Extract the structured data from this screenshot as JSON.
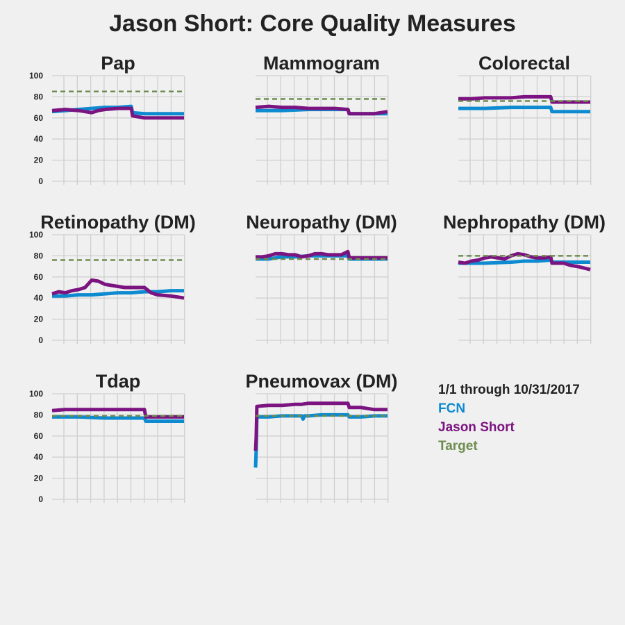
{
  "title": "Jason Short: Core Quality Measures",
  "legend": {
    "title": "1/1 through 10/31/2017",
    "items": [
      {
        "label": "FCN",
        "color": "#0d8ad0"
      },
      {
        "label": "Jason Short",
        "color": "#7b1480"
      },
      {
        "label": "Target",
        "color": "#6e8c4e"
      }
    ]
  },
  "chart_data": [
    {
      "type": "line",
      "title": "Pap",
      "yticks": [
        0,
        20,
        40,
        60,
        80,
        100
      ],
      "ylim": [
        0,
        100
      ],
      "xlim": [
        0,
        10
      ],
      "target": 85,
      "series": [
        {
          "name": "FCN",
          "x": [
            0,
            1,
            2,
            3,
            4,
            5,
            6.0,
            6.1,
            7,
            8,
            9,
            10
          ],
          "y": [
            66,
            67,
            68,
            69,
            70,
            70,
            71,
            65,
            64,
            64,
            64,
            64
          ]
        },
        {
          "name": "Jason Short",
          "x": [
            0,
            1,
            2,
            2.5,
            3,
            3.5,
            4,
            5,
            6,
            6.1,
            7,
            8,
            9,
            10
          ],
          "y": [
            67,
            68,
            67,
            66,
            65,
            67,
            68,
            69,
            69,
            62,
            60,
            60,
            60,
            60
          ]
        }
      ]
    },
    {
      "type": "line",
      "title": "Mammogram",
      "yticks": [
        0,
        20,
        40,
        60,
        80,
        100
      ],
      "ylim": [
        0,
        100
      ],
      "xlim": [
        0,
        10
      ],
      "target": 78,
      "series": [
        {
          "name": "FCN",
          "x": [
            0,
            2,
            4,
            6,
            7,
            7.1,
            8,
            9,
            10
          ],
          "y": [
            67,
            67,
            68,
            68,
            68,
            64,
            64,
            64,
            64
          ]
        },
        {
          "name": "Jason Short",
          "x": [
            0,
            1,
            2,
            3,
            4,
            5,
            6,
            7,
            7.1,
            8,
            9,
            10
          ],
          "y": [
            70,
            71,
            70,
            70,
            69,
            69,
            69,
            68,
            64,
            64,
            64,
            66
          ]
        }
      ]
    },
    {
      "type": "line",
      "title": "Colorectal",
      "yticks": [
        0,
        20,
        40,
        60,
        80,
        100
      ],
      "ylim": [
        0,
        100
      ],
      "xlim": [
        0,
        10
      ],
      "target": 76,
      "series": [
        {
          "name": "FCN",
          "x": [
            0,
            2,
            4,
            7,
            7.1,
            8,
            9,
            10
          ],
          "y": [
            69,
            69,
            70,
            70,
            66,
            66,
            66,
            66
          ]
        },
        {
          "name": "Jason Short",
          "x": [
            0,
            1,
            2,
            3,
            4,
            5,
            6,
            7,
            7.1,
            8,
            9,
            10
          ],
          "y": [
            78,
            78,
            79,
            79,
            79,
            80,
            80,
            80,
            75,
            75,
            75,
            75
          ]
        }
      ]
    },
    {
      "type": "line",
      "title": "Retinopathy (DM)",
      "yticks": [
        0,
        20,
        40,
        60,
        80,
        100
      ],
      "ylim": [
        0,
        100
      ],
      "xlim": [
        0,
        10
      ],
      "target": 76,
      "series": [
        {
          "name": "FCN",
          "x": [
            0,
            1,
            2,
            3,
            4,
            5,
            6,
            7,
            8,
            9,
            10
          ],
          "y": [
            42,
            42,
            43,
            43,
            44,
            45,
            45,
            46,
            46,
            47,
            47
          ]
        },
        {
          "name": "Jason Short",
          "x": [
            0,
            0.5,
            1,
            1.5,
            2,
            2.5,
            3,
            3.5,
            4,
            4.5,
            5,
            5.5,
            6,
            6.5,
            7,
            7.5,
            8,
            9,
            10
          ],
          "y": [
            44,
            46,
            45,
            47,
            48,
            50,
            57,
            56,
            53,
            52,
            51,
            50,
            50,
            50,
            50,
            45,
            43,
            42,
            40
          ]
        }
      ]
    },
    {
      "type": "line",
      "title": "Neuropathy (DM)",
      "yticks": [
        0,
        20,
        40,
        60,
        80,
        100
      ],
      "ylim": [
        0,
        100
      ],
      "xlim": [
        0,
        10
      ],
      "target": 77,
      "series": [
        {
          "name": "FCN",
          "x": [
            0,
            1,
            2,
            3,
            4,
            5,
            6,
            7,
            7.1,
            8,
            9,
            10
          ],
          "y": [
            77,
            77,
            79,
            79,
            80,
            80,
            80,
            80,
            77,
            77,
            77,
            77
          ]
        },
        {
          "name": "Jason Short",
          "x": [
            0,
            0.5,
            1,
            1.5,
            2,
            2.5,
            3,
            3.5,
            4,
            4.5,
            5,
            5.5,
            6,
            6.5,
            7,
            7.1,
            8,
            9,
            10
          ],
          "y": [
            79,
            79,
            80,
            82,
            82,
            81,
            81,
            79,
            80,
            82,
            82,
            81,
            81,
            81,
            84,
            78,
            78,
            78,
            78
          ]
        }
      ]
    },
    {
      "type": "line",
      "title": "Nephropathy (DM)",
      "yticks": [
        0,
        20,
        40,
        60,
        80,
        100
      ],
      "ylim": [
        0,
        100
      ],
      "xlim": [
        0,
        10
      ],
      "target": 80,
      "series": [
        {
          "name": "FCN",
          "x": [
            0,
            2,
            4,
            5,
            6,
            7,
            7.1,
            8,
            9,
            10
          ],
          "y": [
            73,
            73,
            74,
            75,
            75,
            76,
            74,
            74,
            74,
            74
          ]
        },
        {
          "name": "Jason Short",
          "x": [
            0,
            0.5,
            1,
            1.5,
            2,
            2.5,
            3,
            3.5,
            4,
            4.5,
            5,
            5.5,
            6,
            6.5,
            7,
            7.1,
            8,
            8.5,
            9,
            10
          ],
          "y": [
            74,
            73,
            75,
            76,
            78,
            79,
            78,
            77,
            80,
            82,
            81,
            79,
            78,
            78,
            79,
            73,
            73,
            71,
            70,
            67
          ]
        }
      ]
    },
    {
      "type": "line",
      "title": "Tdap",
      "yticks": [
        0,
        20,
        40,
        60,
        80,
        100
      ],
      "ylim": [
        0,
        100
      ],
      "xlim": [
        0,
        10
      ],
      "target": 79,
      "series": [
        {
          "name": "FCN",
          "x": [
            0,
            2,
            4,
            5,
            6,
            7,
            7.1,
            8,
            9,
            10
          ],
          "y": [
            78,
            78,
            77,
            77,
            77,
            77,
            74,
            74,
            74,
            74
          ]
        },
        {
          "name": "Jason Short",
          "x": [
            0,
            1,
            2,
            3,
            4,
            5,
            6,
            7,
            7.1,
            8,
            9,
            10
          ],
          "y": [
            84,
            85,
            85,
            85,
            85,
            85,
            85,
            85,
            78,
            78,
            78,
            78
          ]
        }
      ]
    },
    {
      "type": "line",
      "title": "Pneumovax (DM)",
      "yticks": [
        0,
        20,
        40,
        60,
        80,
        100
      ],
      "ylim": [
        0,
        100
      ],
      "xlim": [
        0,
        10
      ],
      "target": 79,
      "series": [
        {
          "name": "FCN",
          "x": [
            0,
            0.05,
            0.1,
            1,
            2,
            3,
            3.5,
            3.6,
            3.7,
            4,
            5,
            6,
            7,
            7.1,
            8,
            9,
            10
          ],
          "y": [
            30,
            46,
            78,
            78,
            79,
            79,
            79,
            76,
            79,
            79,
            80,
            80,
            80,
            78,
            78,
            79,
            79
          ]
        },
        {
          "name": "Jason Short",
          "x": [
            0,
            0.05,
            0.1,
            1,
            2,
            3,
            3.5,
            4,
            5,
            6,
            7,
            7.1,
            8,
            9,
            10
          ],
          "y": [
            46,
            58,
            88,
            89,
            89,
            90,
            90,
            91,
            91,
            91,
            91,
            87,
            87,
            85,
            85
          ]
        }
      ]
    }
  ]
}
